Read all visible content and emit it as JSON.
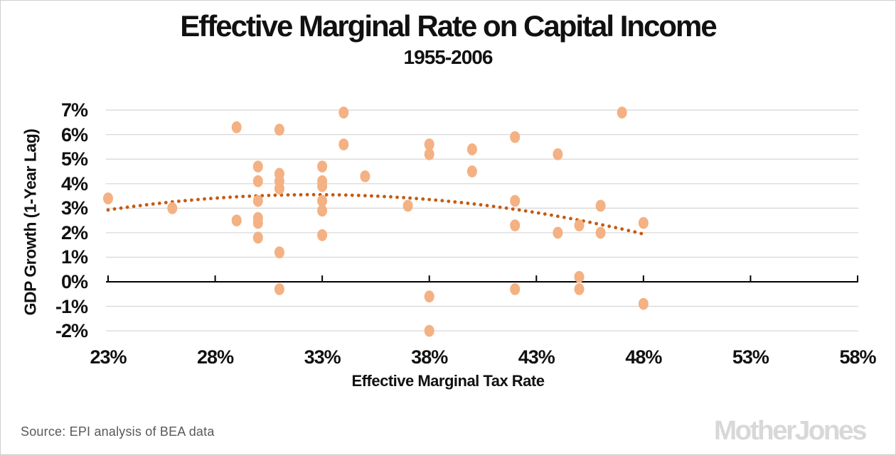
{
  "title": "Effective Marginal Rate on Capital Income",
  "subtitle": "1955-2006",
  "source_note": "Source: EPI analysis of BEA data",
  "logo_text": "MotherJones",
  "colors": {
    "point_fill": "#F4B183",
    "trend": "#C55A11",
    "gridline": "#D9D9D9",
    "axis": "#000000",
    "text": "#111111",
    "source_text": "#595959",
    "logo_gray": "#D8D8D8"
  },
  "chart_data": {
    "type": "scatter",
    "title": "Effective Marginal Rate on Capital Income",
    "subtitle": "1955-2006",
    "xlabel": "Effective Marginal Tax Rate",
    "ylabel": "GDP Growth (1-Year Lag)",
    "xlim": [
      23,
      58
    ],
    "ylim": [
      -2,
      7
    ],
    "x_tick_values": [
      23,
      28,
      33,
      38,
      43,
      48,
      53,
      58
    ],
    "x_tick_labels": [
      "23%",
      "28%",
      "33%",
      "38%",
      "43%",
      "48%",
      "53%",
      "58%"
    ],
    "y_tick_values": [
      7,
      6,
      5,
      4,
      3,
      2,
      1,
      0,
      -1,
      -2
    ],
    "y_tick_labels": [
      "7%",
      "6%",
      "5%",
      "4%",
      "3%",
      "2%",
      "1%",
      "0%",
      "-1%",
      "-2%"
    ],
    "grid": "horizontal-only",
    "legend": "none",
    "points": [
      [
        23,
        3.4
      ],
      [
        26,
        3.0
      ],
      [
        29,
        6.3
      ],
      [
        29,
        2.5
      ],
      [
        30,
        4.7
      ],
      [
        30,
        4.1
      ],
      [
        30,
        3.3
      ],
      [
        30,
        2.6
      ],
      [
        30,
        2.4
      ],
      [
        30,
        1.8
      ],
      [
        31,
        6.2
      ],
      [
        31,
        4.4
      ],
      [
        31,
        4.1
      ],
      [
        31,
        3.8
      ],
      [
        31,
        1.2
      ],
      [
        31,
        -0.3
      ],
      [
        33,
        4.7
      ],
      [
        33,
        4.1
      ],
      [
        33,
        3.9
      ],
      [
        33,
        3.3
      ],
      [
        33,
        2.9
      ],
      [
        33,
        1.9
      ],
      [
        34,
        6.9
      ],
      [
        34,
        5.6
      ],
      [
        35,
        4.3
      ],
      [
        37,
        3.1
      ],
      [
        38,
        5.6
      ],
      [
        38,
        5.2
      ],
      [
        38,
        -0.6
      ],
      [
        38,
        -2.0
      ],
      [
        40,
        5.4
      ],
      [
        40,
        4.5
      ],
      [
        42,
        5.9
      ],
      [
        42,
        3.3
      ],
      [
        42,
        2.3
      ],
      [
        42,
        -0.3
      ],
      [
        44,
        5.2
      ],
      [
        44,
        2.0
      ],
      [
        45,
        2.3
      ],
      [
        45,
        0.2
      ],
      [
        45,
        -0.3
      ],
      [
        46,
        3.1
      ],
      [
        46,
        2.0
      ],
      [
        47,
        6.9
      ],
      [
        48,
        2.4
      ],
      [
        48,
        -0.9
      ]
    ],
    "trendline": {
      "type": "quadratic",
      "style": "dotted",
      "color": "#C55A11",
      "coefficients": {
        "a": -0.00675,
        "b": 0.44,
        "c": -3.62
      },
      "x_range": [
        23,
        47.9
      ],
      "description": "Inverted-U polynomial fit peaking near x=32.6%, y=3.55%"
    }
  }
}
